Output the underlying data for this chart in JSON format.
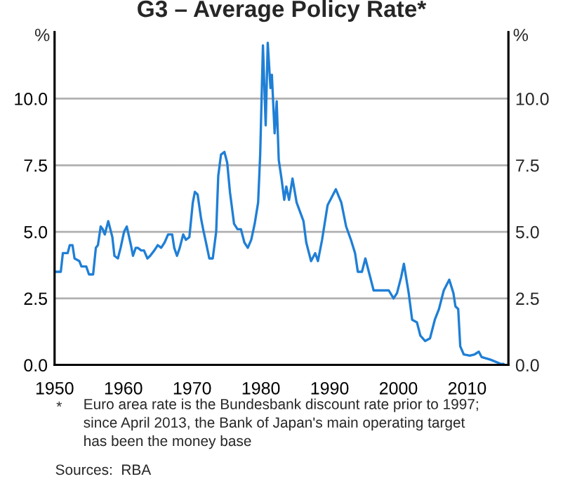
{
  "chart_data": {
    "type": "line",
    "title": "G3 – Average Policy Rate*",
    "ylabel": "%",
    "y2label": "%",
    "x": [
      1950.2,
      1950.9,
      1951.2,
      1951.9,
      1952.2,
      1952.6,
      1952.9,
      1953.6,
      1953.9,
      1954.6,
      1955.0,
      1955.6,
      1956.0,
      1956.3,
      1956.7,
      1957.0,
      1957.3,
      1957.8,
      1958.4,
      1958.7,
      1959.2,
      1959.6,
      1960.1,
      1960.5,
      1961.1,
      1961.4,
      1961.8,
      1962.1,
      1962.6,
      1963.0,
      1963.5,
      1963.9,
      1964.5,
      1965.0,
      1965.5,
      1966.0,
      1966.5,
      1967.1,
      1967.4,
      1967.8,
      1968.2,
      1968.7,
      1969.1,
      1969.6,
      1970.1,
      1970.4,
      1970.8,
      1971.3,
      1971.6,
      1972.1,
      1972.5,
      1973.0,
      1973.5,
      1973.8,
      1974.2,
      1974.7,
      1975.1,
      1975.5,
      1976.1,
      1976.6,
      1977.1,
      1977.6,
      1978.1,
      1978.6,
      1979.1,
      1979.6,
      1979.9,
      1980.3,
      1980.7,
      1981.0,
      1981.4,
      1981.6,
      1982.0,
      1982.3,
      1982.6,
      1983.0,
      1983.4,
      1983.7,
      1984.1,
      1984.6,
      1985.2,
      1986.2,
      1986.6,
      1987.3,
      1987.9,
      1988.3,
      1988.9,
      1989.7,
      1990.9,
      1991.7,
      1992.4,
      1993.1,
      1993.7,
      1994.1,
      1994.7,
      1995.2,
      1995.7,
      1996.4,
      1997.4,
      1998.6,
      1999.3,
      1999.8,
      2000.4,
      2000.8,
      2001.5,
      2002.0,
      2002.7,
      2003.2,
      2003.9,
      2004.6,
      2005.3,
      2005.9,
      2006.6,
      2007.4,
      2008.0,
      2008.3,
      2008.7,
      2009.0,
      2009.5,
      2010.4,
      2011.1,
      2011.7,
      2012.1,
      2013.4,
      2014.8,
      2015.3
    ],
    "series": [
      {
        "color": "#1f7fd6",
        "values": [
          3.5,
          3.5,
          4.2,
          4.2,
          4.5,
          4.5,
          4.0,
          3.9,
          3.7,
          3.7,
          3.4,
          3.4,
          4.4,
          4.5,
          5.2,
          5.1,
          4.9,
          5.4,
          4.8,
          4.1,
          4.0,
          4.4,
          5.0,
          5.2,
          4.5,
          4.1,
          4.4,
          4.4,
          4.3,
          4.3,
          4.0,
          4.1,
          4.3,
          4.5,
          4.4,
          4.6,
          4.9,
          4.9,
          4.4,
          4.1,
          4.4,
          4.9,
          4.7,
          4.8,
          6.1,
          6.5,
          6.4,
          5.5,
          5.1,
          4.5,
          4.0,
          4.0,
          5.0,
          7.1,
          7.9,
          8.0,
          7.6,
          6.5,
          5.3,
          5.1,
          5.1,
          4.6,
          4.4,
          4.7,
          5.3,
          6.1,
          7.9,
          12.0,
          9.0,
          12.1,
          10.4,
          10.9,
          8.7,
          9.9,
          7.7,
          7.0,
          6.2,
          6.7,
          6.2,
          7.0,
          6.1,
          5.4,
          4.6,
          3.9,
          4.2,
          3.9,
          4.7,
          6.0,
          6.6,
          6.1,
          5.2,
          4.7,
          4.2,
          3.5,
          3.5,
          4.0,
          3.5,
          2.8,
          2.8,
          2.8,
          2.5,
          2.7,
          3.3,
          3.8,
          2.7,
          1.7,
          1.6,
          1.1,
          0.9,
          1.0,
          1.7,
          2.1,
          2.8,
          3.2,
          2.7,
          2.2,
          2.1,
          0.7,
          0.4,
          0.35,
          0.4,
          0.5,
          0.3,
          0.2,
          0.05,
          0.04
        ]
      }
    ],
    "xlim": [
      1950,
      2016
    ],
    "xticks": [
      1950,
      1960,
      1970,
      1980,
      1990,
      2000,
      2010
    ],
    "ylim": [
      0,
      12.5
    ],
    "yticks": [
      {
        "value": 0,
        "label": "0.0"
      },
      {
        "value": 2.5,
        "label": "2.5"
      },
      {
        "value": 5,
        "label": "5.0"
      },
      {
        "value": 7.5,
        "label": "7.5"
      },
      {
        "value": 10,
        "label": "10.0"
      }
    ],
    "y2lim": [
      0,
      12.5
    ],
    "y2ticks": [
      {
        "value": 0,
        "label": "0.0"
      },
      {
        "value": 2.5,
        "label": "2.5"
      },
      {
        "value": 5,
        "label": "5.0"
      },
      {
        "value": 7.5,
        "label": "7.5"
      },
      {
        "value": 10,
        "label": "10.0"
      }
    ],
    "grid": "y",
    "legend": false,
    "marker": "none",
    "line_style": "solid",
    "annotations": [
      "*",
      "Euro area rate is the Bundesbank discount rate prior to 1997;\nsince April 2013, the Bank of Japan's main operating target\nhas been the money base",
      "Sources:  RBA"
    ]
  }
}
